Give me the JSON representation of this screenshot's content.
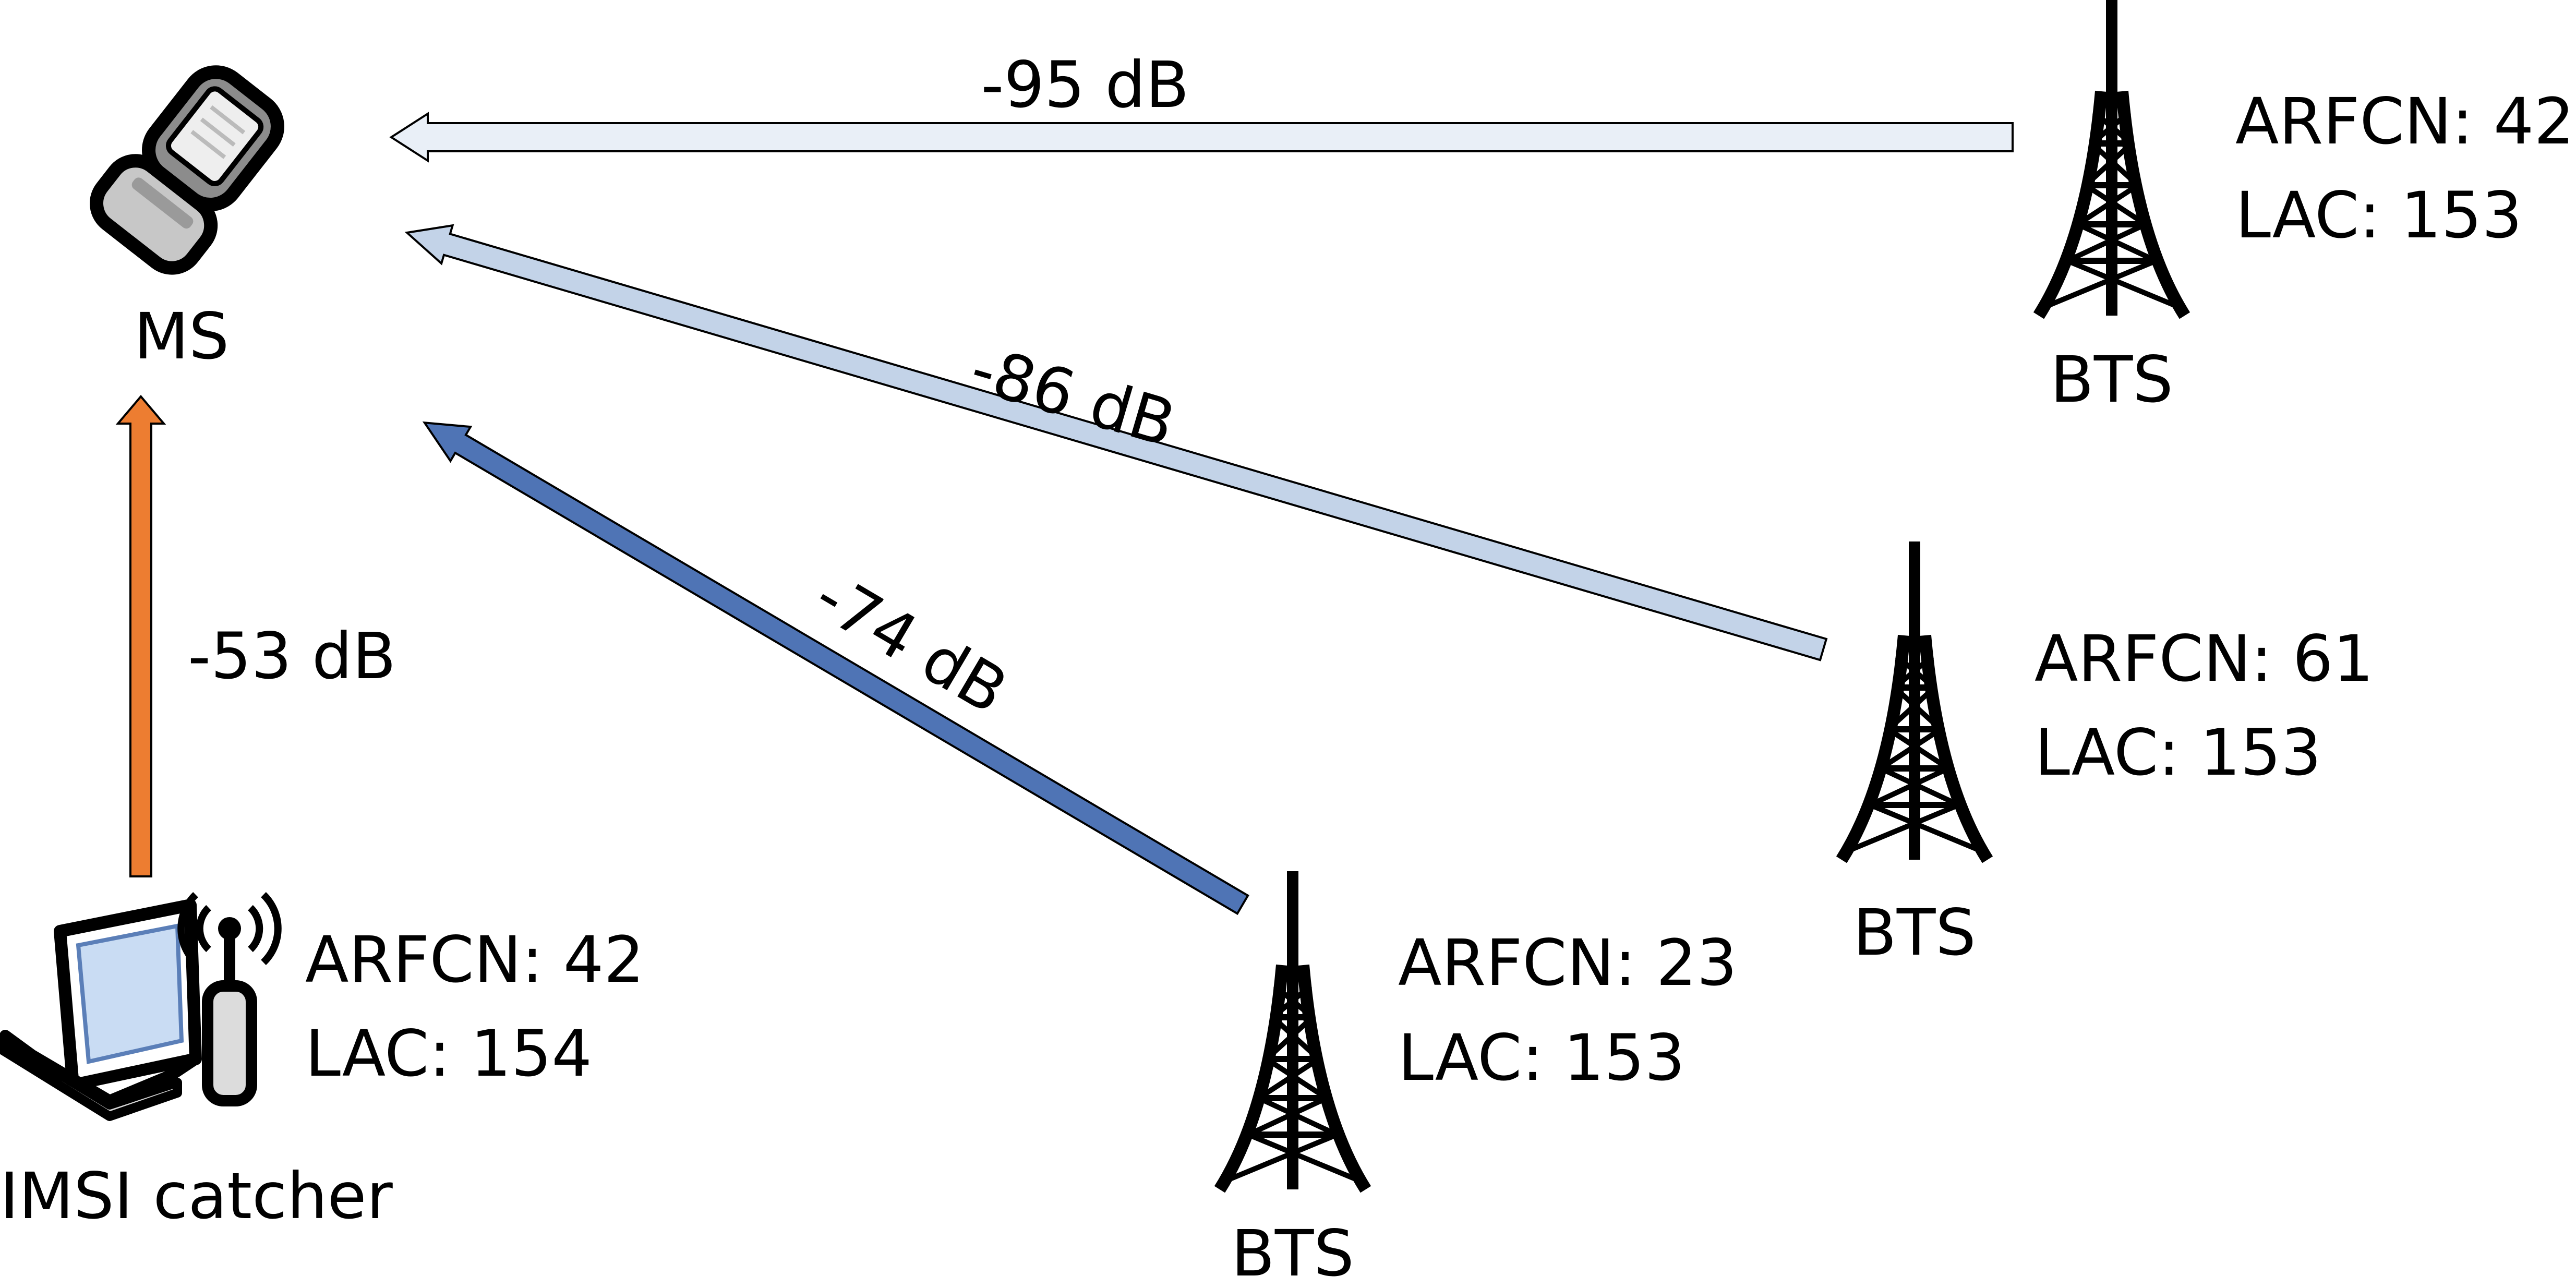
{
  "nodes": {
    "ms": {
      "label": "MS"
    },
    "imsi_catcher": {
      "label": "IMSI catcher",
      "arfcn": "ARFCN: 42",
      "lac": "LAC: 154"
    },
    "bts_top": {
      "label": "BTS",
      "arfcn": "ARFCN: 42",
      "lac": "LAC: 153"
    },
    "bts_middle": {
      "label": "BTS",
      "arfcn": "ARFCN: 61",
      "lac": "LAC: 153"
    },
    "bts_bottom": {
      "label": "BTS",
      "arfcn": "ARFCN: 23",
      "lac": "LAC: 153"
    }
  },
  "links": {
    "imsi_to_ms": {
      "signal": "-53 dB",
      "color": "#ED7D31"
    },
    "bts_top_to_ms": {
      "signal": "-95 dB",
      "color": "#E9EFF7"
    },
    "bts_middle_to_ms": {
      "signal": "-86 dB",
      "color": "#C3D3E8"
    },
    "bts_bottom_to_ms": {
      "signal": "-74 dB",
      "color": "#4F74B5"
    }
  },
  "icons": {
    "ms": "mobile-phone-icon",
    "imsi_catcher": "laptop-with-antenna-icon",
    "bts": "cell-tower-icon"
  }
}
